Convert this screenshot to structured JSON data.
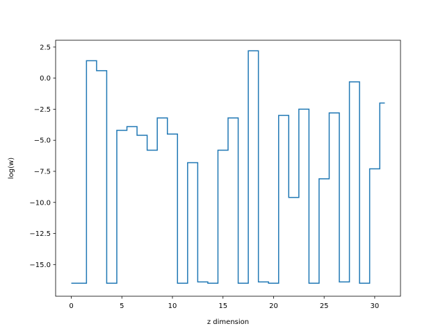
{
  "chart_data": {
    "type": "line",
    "step": "mid",
    "title": "",
    "xlabel": "z dimension",
    "ylabel": "log(w)",
    "xlim": [
      -1.55,
      32.55
    ],
    "ylim": [
      -17.55,
      3.05
    ],
    "x": [
      0,
      1,
      2,
      3,
      4,
      5,
      6,
      7,
      8,
      9,
      10,
      11,
      12,
      13,
      14,
      15,
      16,
      17,
      18,
      19,
      20,
      21,
      22,
      23,
      24,
      25,
      26,
      27,
      28,
      29,
      30,
      31
    ],
    "series": [
      {
        "color": "#1f77b4",
        "values": [
          -16.5,
          -16.5,
          1.4,
          0.6,
          -16.5,
          -4.2,
          -3.9,
          -4.6,
          -5.8,
          -3.2,
          -4.5,
          -16.5,
          -6.8,
          -16.4,
          -16.5,
          -5.8,
          -3.2,
          -16.5,
          2.2,
          -16.4,
          -16.5,
          -3.0,
          -9.6,
          -2.5,
          -16.5,
          -8.1,
          -2.8,
          -16.4,
          -0.3,
          -16.5,
          -7.3,
          -2.0
        ]
      }
    ],
    "xticks": [
      0,
      5,
      10,
      15,
      20,
      25,
      30
    ],
    "xtick_labels": [
      "0",
      "5",
      "10",
      "15",
      "20",
      "25",
      "30"
    ],
    "yticks": [
      2.5,
      0.0,
      -2.5,
      -5.0,
      -7.5,
      -10.0,
      -12.5,
      -15.0
    ],
    "ytick_labels": [
      "2.5",
      "0.0",
      "−2.5",
      "−5.0",
      "−7.5",
      "−10.0",
      "−12.5",
      "−15.0"
    ],
    "grid": false,
    "legend": false
  }
}
